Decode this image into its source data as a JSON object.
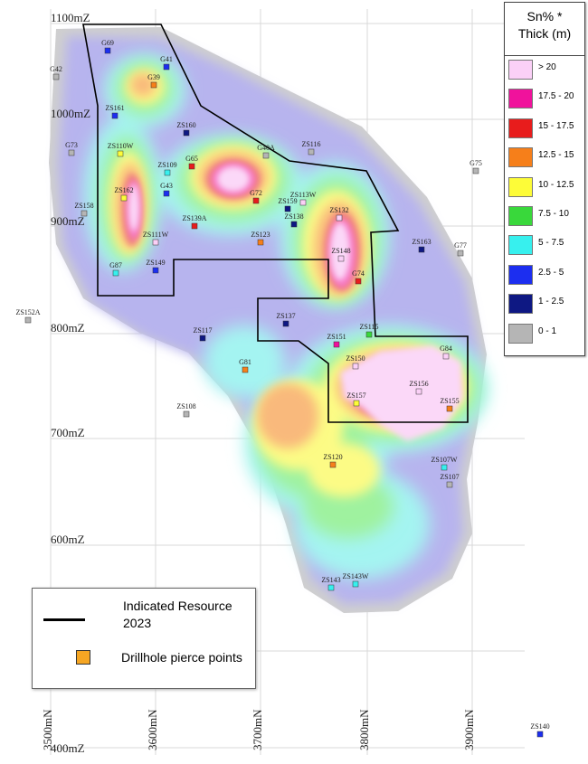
{
  "map": {
    "northings": [
      "1100mZ",
      "1000mZ",
      "900mZ",
      "800mZ",
      "700mZ",
      "600mZ",
      "400mZ"
    ],
    "eastings": [
      "3500mN",
      "3600mN",
      "3700mN",
      "3800mN",
      "3900mN"
    ]
  },
  "scale_legend": {
    "title_line1": "Sn% *",
    "title_line2": "Thick (m)",
    "items": [
      {
        "label": "> 20",
        "color": "#fbd0f7"
      },
      {
        "label": "17.5 - 20",
        "color": "#f0129c"
      },
      {
        "label": "15 - 17.5",
        "color": "#e81c1c"
      },
      {
        "label": "12.5 - 15",
        "color": "#f67f1a"
      },
      {
        "label": "10 - 12.5",
        "color": "#fdfc38"
      },
      {
        "label": "7.5 - 10",
        "color": "#39d83b"
      },
      {
        "label": "5 - 7.5",
        "color": "#37f0ee"
      },
      {
        "label": "2.5 - 5",
        "color": "#1c2ef0"
      },
      {
        "label": "1 - 2.5",
        "color": "#0e1883"
      },
      {
        "label": "0 - 1",
        "color": "#b5b5b5"
      }
    ]
  },
  "main_legend": {
    "indicated_line1": "Indicated Resource",
    "indicated_line2": "2023",
    "pierce_points": "Drillhole pierce points",
    "pierce_color": "#f6a623"
  },
  "drillholes": [
    {
      "label": "G69",
      "color": "#1c2ef0"
    },
    {
      "label": "G41",
      "color": "#1c2ef0"
    },
    {
      "label": "G42",
      "color": "#b5b5b5"
    },
    {
      "label": "G39",
      "color": "#f67f1a"
    },
    {
      "label": "ZS161",
      "color": "#1c2ef0"
    },
    {
      "label": "ZS160",
      "color": "#0e1883"
    },
    {
      "label": "G73",
      "color": "#b5b5b5"
    },
    {
      "label": "ZS110W",
      "color": "#fdfc38"
    },
    {
      "label": "ZS109",
      "color": "#37f0ee"
    },
    {
      "label": "G65",
      "color": "#e81c1c"
    },
    {
      "label": "G43",
      "color": "#1c2ef0"
    },
    {
      "label": "G40A",
      "color": "#b5b5b5"
    },
    {
      "label": "ZS116",
      "color": "#b5b5b5"
    },
    {
      "label": "G75",
      "color": "#b5b5b5"
    },
    {
      "label": "ZS158",
      "color": "#b5b5b5"
    },
    {
      "label": "ZS162",
      "color": "#fdfc38"
    },
    {
      "label": "G72",
      "color": "#e81c1c"
    },
    {
      "label": "ZS159",
      "color": "#0e1883"
    },
    {
      "label": "ZS113W",
      "color": "#fbd0f7"
    },
    {
      "label": "ZS138",
      "color": "#0e1883"
    },
    {
      "label": "ZS139A",
      "color": "#e81c1c"
    },
    {
      "label": "ZS132",
      "color": "#fbd0f7"
    },
    {
      "label": "ZS111W",
      "color": "#fbd0f7"
    },
    {
      "label": "ZS123",
      "color": "#f67f1a"
    },
    {
      "label": "ZS163",
      "color": "#0e1883"
    },
    {
      "label": "G77",
      "color": "#b5b5b5"
    },
    {
      "label": "ZS148",
      "color": "#fbd0f7"
    },
    {
      "label": "G87",
      "color": "#37f0ee"
    },
    {
      "label": "ZS149",
      "color": "#1c2ef0"
    },
    {
      "label": "G74",
      "color": "#e81c1c"
    },
    {
      "label": "ZS152A",
      "color": "#b5b5b5"
    },
    {
      "label": "ZS137",
      "color": "#0e1883"
    },
    {
      "label": "ZS117",
      "color": "#0e1883"
    },
    {
      "label": "ZS115",
      "color": "#39d83b"
    },
    {
      "label": "ZS151",
      "color": "#f0129c"
    },
    {
      "label": "G84",
      "color": "#fbd0f7"
    },
    {
      "label": "ZS150",
      "color": "#fbd0f7"
    },
    {
      "label": "G81",
      "color": "#f67f1a"
    },
    {
      "label": "ZS156",
      "color": "#fbd0f7"
    },
    {
      "label": "ZS157",
      "color": "#fdfc38"
    },
    {
      "label": "ZS155",
      "color": "#f67f1a"
    },
    {
      "label": "ZS108",
      "color": "#b5b5b5"
    },
    {
      "label": "ZS120",
      "color": "#f67f1a"
    },
    {
      "label": "ZS107W",
      "color": "#37f0ee"
    },
    {
      "label": "ZS107",
      "color": "#b5b5b5"
    },
    {
      "label": "ZS143",
      "color": "#37f0ee"
    },
    {
      "label": "ZS143W",
      "color": "#37f0ee"
    },
    {
      "label": "ZS140",
      "color": "#1c2ef0"
    }
  ]
}
